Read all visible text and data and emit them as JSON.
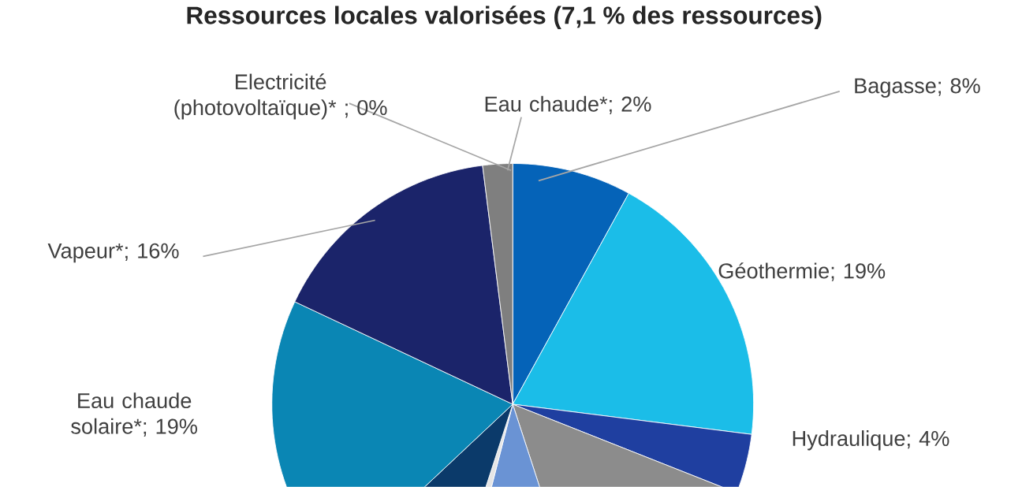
{
  "chart_data": {
    "type": "pie",
    "title": "Ressources locales valorisées (7,1 % des ressources)",
    "categories": [
      "Bagasse; 8%",
      "Géothermie; 19%",
      "Hydraulique; 4%",
      null,
      null,
      null,
      null,
      "Eau chaude solaire*; 19%",
      "Vapeur*; 16%",
      "Eau chaude*; 2%",
      "Electricité (photovoltaïque)* ; 0%"
    ],
    "values": [
      8,
      19,
      4,
      14,
      9,
      1,
      8,
      19,
      16,
      2,
      0
    ],
    "colors": [
      "#0563b8",
      "#1bbde8",
      "#1f3fa0",
      "#8c8c8c",
      "#6a93d4",
      "#e6e6e6",
      "#0b3a6a",
      "#0a86b4",
      "#1b246a",
      "#7f7f7f",
      "#b0b0b0"
    ]
  }
}
